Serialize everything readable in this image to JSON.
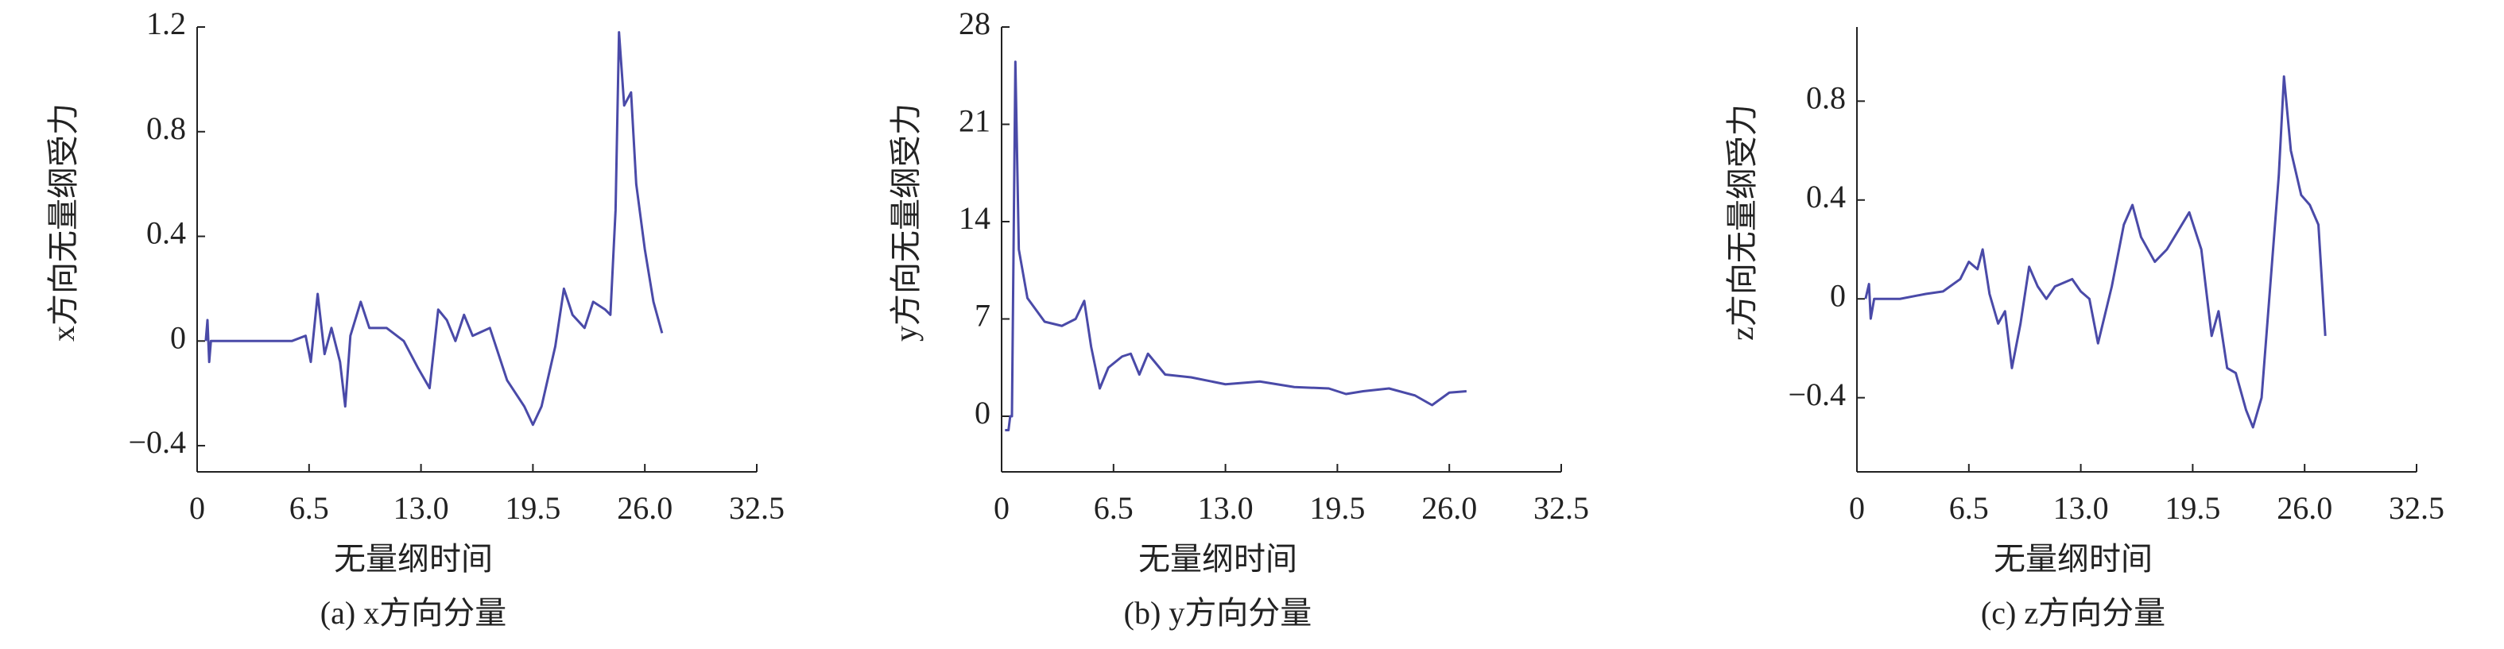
{
  "chart_data": [
    {
      "type": "line",
      "caption": "(a) x方向分量",
      "xlabel": "无量纲时间",
      "ylabel": "x方向无量纲受力",
      "color": "#4a4aa8",
      "xlim": [
        0,
        32.5
      ],
      "xticks": [
        0,
        6.5,
        {
          "value": 13,
          "label": "13.0"
        },
        19.5,
        {
          "value": 26,
          "label": "26.0"
        },
        32.5
      ],
      "ylim": [
        -0.5,
        1.2
      ],
      "yticks": [
        {
          "value": -0.4,
          "label": "−0.4"
        },
        0,
        0.4,
        0.8,
        1.2
      ],
      "x": [
        0.5,
        0.6,
        0.7,
        0.8,
        2,
        4,
        5.5,
        6.3,
        6.6,
        7,
        7.4,
        7.8,
        8.3,
        8.6,
        8.9,
        9.5,
        10,
        11,
        12,
        12.8,
        13.5,
        14,
        14.5,
        15,
        15.5,
        16,
        17,
        18,
        19,
        19.5,
        20,
        20.8,
        21.3,
        21.8,
        22.5,
        23,
        23.7,
        24,
        24.3,
        24.5,
        24.8,
        25.2,
        25.5,
        26,
        26.5,
        27
      ],
      "values": [
        0,
        0.08,
        -0.08,
        0,
        0,
        0,
        0,
        0.02,
        -0.08,
        0.18,
        -0.05,
        0.05,
        -0.08,
        -0.25,
        0.02,
        0.15,
        0.05,
        0.05,
        0,
        -0.1,
        -0.18,
        0.12,
        0.08,
        0,
        0.1,
        0.02,
        0.05,
        -0.15,
        -0.25,
        -0.32,
        -0.25,
        -0.02,
        0.2,
        0.1,
        0.05,
        0.15,
        0.12,
        0.1,
        0.5,
        1.18,
        0.9,
        0.95,
        0.6,
        0.35,
        0.15,
        0.03
      ]
    },
    {
      "type": "line",
      "caption": "(b) y方向分量",
      "xlabel": "无量纲时间",
      "ylabel": "y方向无量纲受力",
      "color": "#4a4aa8",
      "xlim": [
        0,
        32.5
      ],
      "xticks": [
        0,
        6.5,
        {
          "value": 13,
          "label": "13.0"
        },
        19.5,
        {
          "value": 26,
          "label": "26.0"
        },
        32.5
      ],
      "ylim": [
        -4,
        28
      ],
      "yticks": [
        0,
        7,
        14,
        21,
        28
      ],
      "x": [
        0.2,
        0.4,
        0.5,
        0.6,
        0.8,
        1,
        1.5,
        2.5,
        3.5,
        4.3,
        4.8,
        5.2,
        5.7,
        6.2,
        7,
        7.5,
        8,
        8.5,
        9.5,
        11,
        13,
        15,
        17,
        19,
        20,
        21,
        22.5,
        24,
        25,
        26,
        27
      ],
      "values": [
        -1,
        -1,
        0,
        0,
        25.5,
        12,
        8.5,
        6.8,
        6.5,
        7,
        8.3,
        5,
        2,
        3.5,
        4.3,
        4.5,
        3,
        4.5,
        3,
        2.8,
        2.3,
        2.5,
        2.1,
        2,
        1.6,
        1.8,
        2,
        1.5,
        0.8,
        1.7,
        1.8
      ]
    },
    {
      "type": "line",
      "caption": "(c) z方向分量",
      "xlabel": "无量纲时间",
      "ylabel": "z方向无量纲受力",
      "color": "#4a4aa8",
      "xlim": [
        0,
        32.5
      ],
      "xticks": [
        0,
        6.5,
        {
          "value": 13,
          "label": "13.0"
        },
        19.5,
        {
          "value": 26,
          "label": "26.0"
        },
        32.5
      ],
      "ylim": [
        -0.7,
        1.1
      ],
      "yticks": [
        {
          "value": -0.4,
          "label": "−0.4"
        },
        0,
        0.4,
        0.8
      ],
      "x": [
        0.5,
        0.7,
        0.8,
        1,
        2.5,
        4,
        5,
        6,
        6.5,
        7,
        7.3,
        7.7,
        8.2,
        8.6,
        9,
        9.5,
        10,
        10.5,
        11,
        11.5,
        12.5,
        13,
        13.5,
        14,
        14.8,
        15.5,
        16,
        16.5,
        17.3,
        18,
        19.3,
        20,
        20.6,
        21,
        21.5,
        22,
        22.6,
        23,
        23.5,
        24.5,
        24.8,
        25.2,
        25.8,
        26.3,
        26.8,
        27.2
      ],
      "values": [
        0,
        0.06,
        -0.08,
        0,
        0,
        0.02,
        0.03,
        0.08,
        0.15,
        0.12,
        0.2,
        0.02,
        -0.1,
        -0.05,
        -0.28,
        -0.1,
        0.13,
        0.05,
        0,
        0.05,
        0.08,
        0.03,
        0,
        -0.18,
        0.05,
        0.3,
        0.38,
        0.25,
        0.15,
        0.2,
        0.35,
        0.2,
        -0.15,
        -0.05,
        -0.28,
        -0.3,
        -0.45,
        -0.52,
        -0.4,
        0.5,
        0.9,
        0.6,
        0.42,
        0.38,
        0.3,
        -0.15
      ]
    }
  ]
}
